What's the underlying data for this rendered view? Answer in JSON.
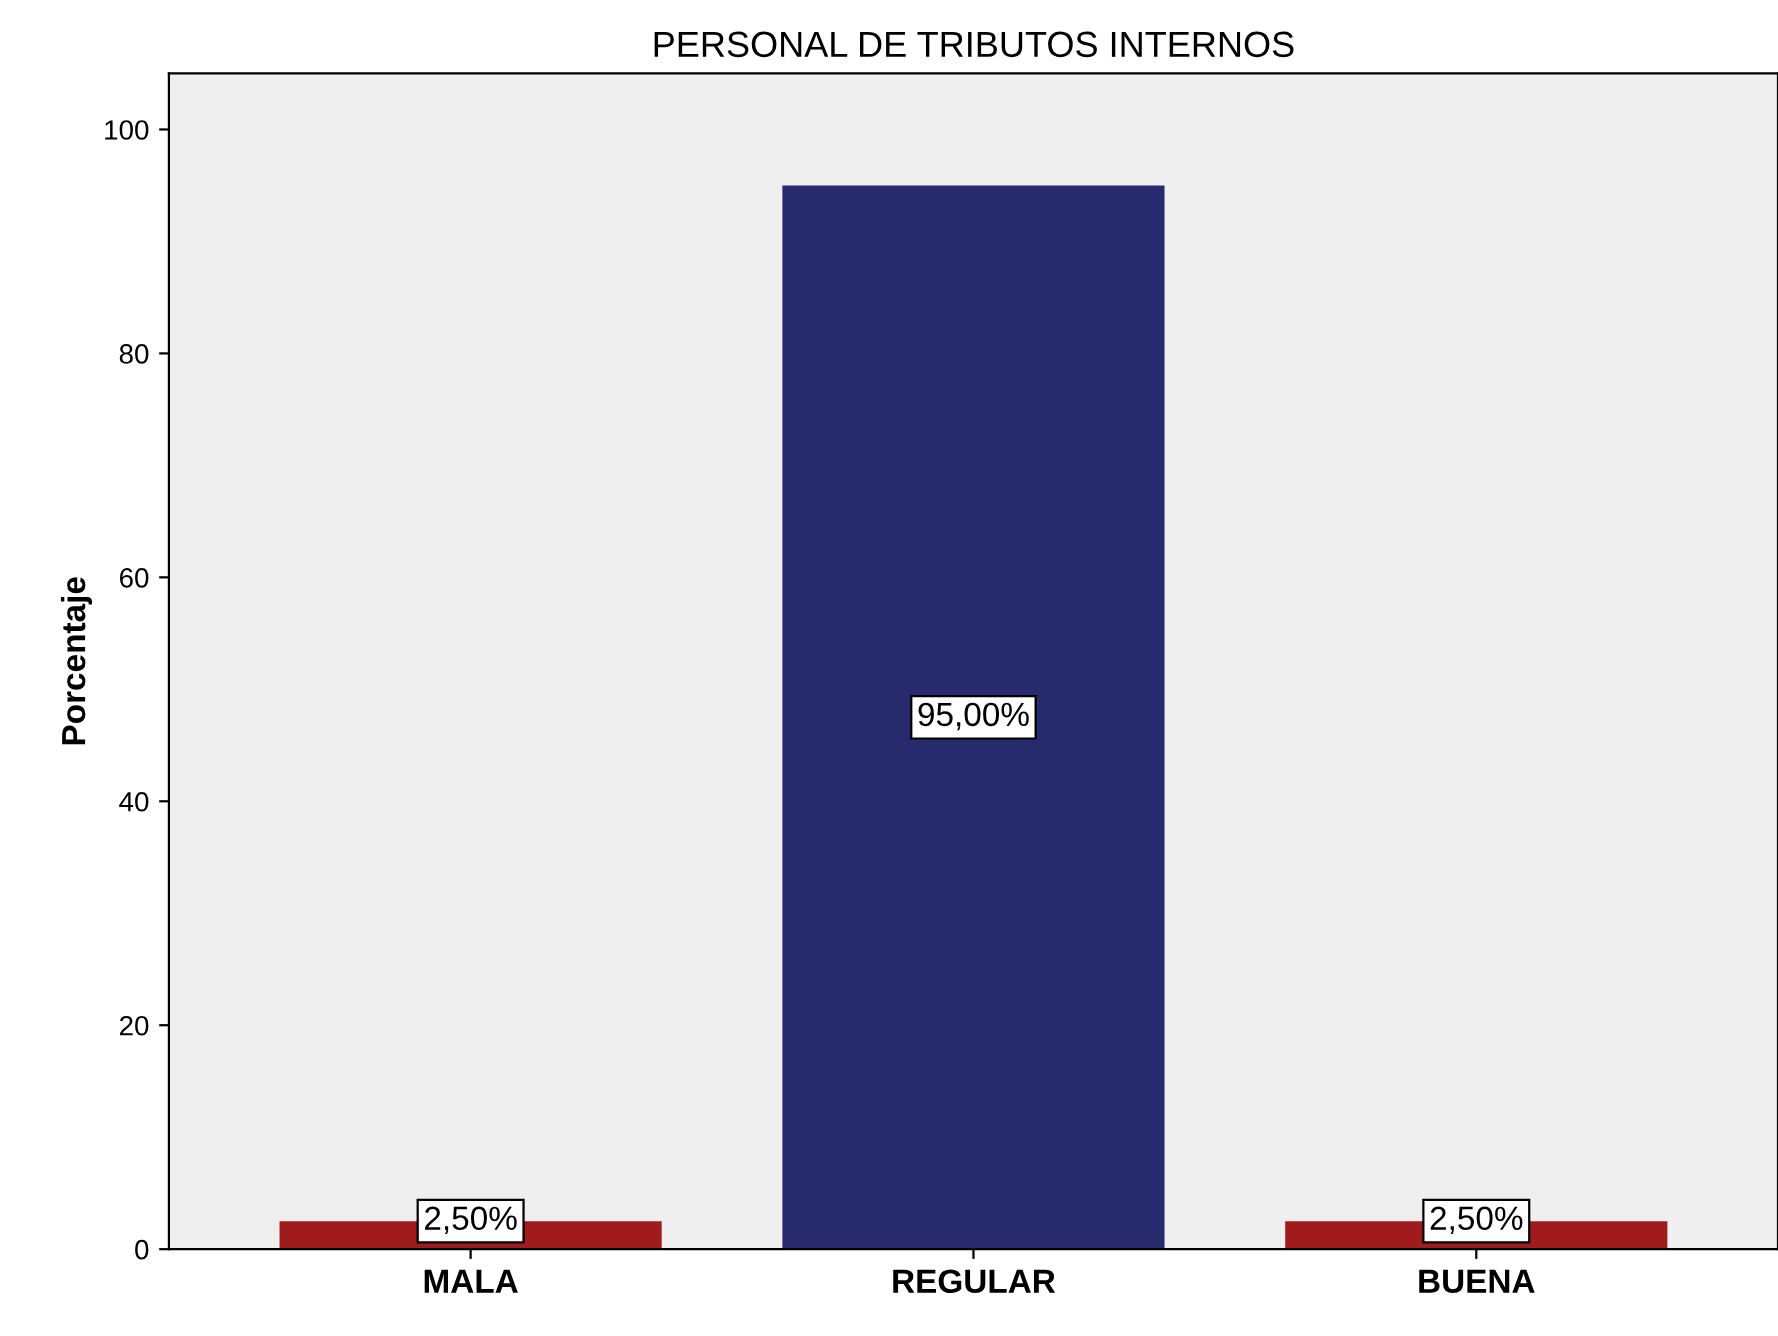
{
  "chart_data": {
    "type": "bar",
    "title": "PERSONAL DE TRIBUTOS INTERNOS",
    "ylabel": "Porcentaje",
    "categories": [
      "MALA",
      "REGULAR",
      "BUENA"
    ],
    "values": [
      2.5,
      95,
      2.5
    ],
    "colors": [
      "#a01c1c",
      "#282a6e",
      "#a01c1c"
    ],
    "value_labels": [
      "2,50%",
      "95,00%",
      "2,50%"
    ],
    "ylim": [
      0,
      105
    ],
    "yticks": [
      0,
      20,
      40,
      60,
      80,
      100
    ],
    "grid": false
  }
}
